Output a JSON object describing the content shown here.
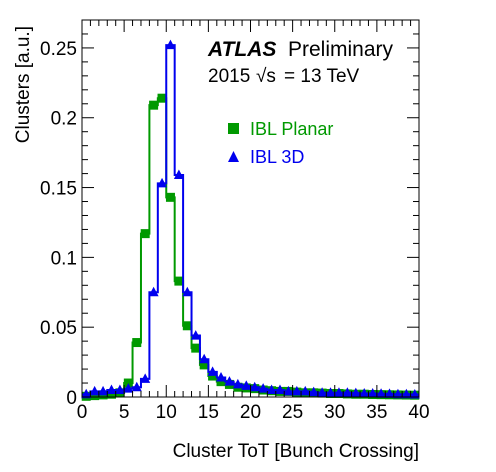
{
  "chart_data": {
    "type": "line",
    "title": "",
    "annotation": {
      "experiment": "ATLAS",
      "status": "Preliminary",
      "year": "2015",
      "energy_lhs": "√s",
      "energy_rhs": "= 13 TeV"
    },
    "xlabel": "Cluster ToT [Bunch Crossing]",
    "ylabel": "Clusters [a.u.]",
    "xlim": [
      0,
      40
    ],
    "ylim": [
      0,
      0.27
    ],
    "x_ticks": [
      "0",
      "5",
      "10",
      "15",
      "20",
      "25",
      "30",
      "35",
      "40"
    ],
    "y_ticks": [
      "0",
      "0.05",
      "0.1",
      "0.15",
      "0.2",
      "0.25"
    ],
    "x_tick_values": [
      0,
      5,
      10,
      15,
      20,
      25,
      30,
      35,
      40
    ],
    "y_tick_values": [
      0,
      0.05,
      0.1,
      0.15,
      0.2,
      0.25
    ],
    "bin_width": 1,
    "x": [
      0.5,
      1.5,
      2.5,
      3.5,
      4.5,
      5.5,
      6.5,
      7.5,
      8.5,
      9.5,
      10.5,
      11.5,
      12.5,
      13.5,
      14.5,
      15.5,
      16.5,
      17.5,
      18.5,
      19.5,
      20.5,
      21.5,
      22.5,
      23.5,
      24.5,
      25.5,
      26.5,
      27.5,
      28.5,
      29.5,
      30.5,
      31.5,
      32.5,
      33.5,
      34.5,
      35.5,
      36.5,
      37.5,
      38.5,
      39.5
    ],
    "legend_position": "top-right",
    "series": [
      {
        "name": "IBL Planar",
        "color": "#009900",
        "marker": "square",
        "values": [
          0.0005,
          0.001,
          0.0015,
          0.002,
          0.003,
          0.01,
          0.039,
          0.117,
          0.209,
          0.214,
          0.143,
          0.083,
          0.051,
          0.035,
          0.023,
          0.015,
          0.011,
          0.009,
          0.007,
          0.0065,
          0.006,
          0.005,
          0.0045,
          0.004,
          0.004,
          0.0035,
          0.003,
          0.003,
          0.0028,
          0.0025,
          0.0025,
          0.0022,
          0.002,
          0.002,
          0.0018,
          0.0017,
          0.0016,
          0.0015,
          0.0014,
          0.0013
        ]
      },
      {
        "name": "IBL 3D",
        "color": "#0000ee",
        "marker": "triangle",
        "values": [
          0.002,
          0.004,
          0.004,
          0.005,
          0.005,
          0.006,
          0.007,
          0.013,
          0.075,
          0.153,
          0.252,
          0.159,
          0.075,
          0.044,
          0.027,
          0.018,
          0.014,
          0.011,
          0.009,
          0.008,
          0.007,
          0.006,
          0.005,
          0.005,
          0.004,
          0.004,
          0.004,
          0.0035,
          0.003,
          0.003,
          0.003,
          0.003,
          0.0028,
          0.0025,
          0.0025,
          0.0023,
          0.0022,
          0.002,
          0.002,
          0.0018
        ]
      }
    ]
  }
}
